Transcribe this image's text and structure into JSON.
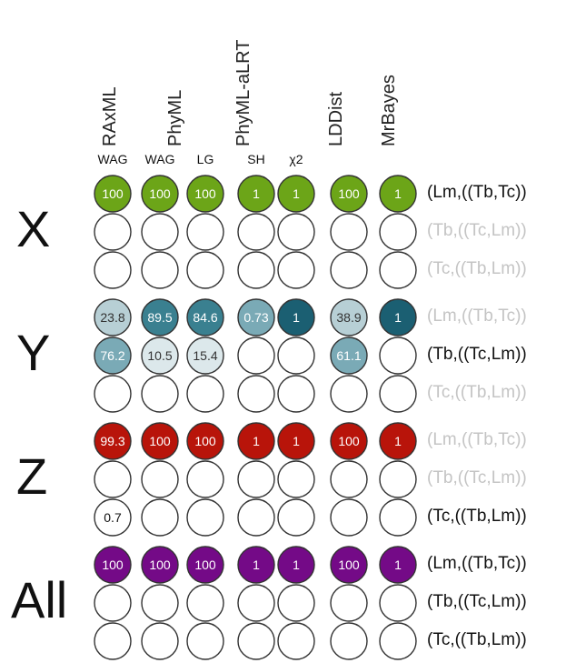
{
  "methods": [
    {
      "label": "RAxML",
      "cols": [
        0
      ]
    },
    {
      "label": "PhyML",
      "cols": [
        1,
        2
      ]
    },
    {
      "label": "PhyML-aLRT",
      "cols": [
        3,
        4
      ]
    },
    {
      "label": "LDDist",
      "cols": [
        5
      ]
    },
    {
      "label": "MrBayes",
      "cols": [
        6
      ]
    }
  ],
  "subheaders": [
    "WAG",
    "WAG",
    "LG",
    "SH",
    "χ2",
    "",
    ""
  ],
  "groups": [
    {
      "label": "X",
      "color": "#6ca518",
      "rows": [
        {
          "topology": "(Lm,((Tb,Tc))",
          "highlight": true,
          "cells": [
            {
              "v": "100",
              "s": "full"
            },
            {
              "v": "100",
              "s": "full"
            },
            {
              "v": "100",
              "s": "full"
            },
            {
              "v": "1",
              "s": "full"
            },
            {
              "v": "1",
              "s": "full"
            },
            {
              "v": "100",
              "s": "full"
            },
            {
              "v": "1",
              "s": "full"
            }
          ]
        },
        {
          "topology": "(Tb,((Tc,Lm))",
          "highlight": false,
          "cells": [
            {
              "v": "",
              "s": "none"
            },
            {
              "v": "",
              "s": "none"
            },
            {
              "v": "",
              "s": "none"
            },
            {
              "v": "",
              "s": "none"
            },
            {
              "v": "",
              "s": "none"
            },
            {
              "v": "",
              "s": "none"
            },
            {
              "v": "",
              "s": "none"
            }
          ]
        },
        {
          "topology": "(Tc,((Tb,Lm))",
          "highlight": false,
          "cells": [
            {
              "v": "",
              "s": "none"
            },
            {
              "v": "",
              "s": "none"
            },
            {
              "v": "",
              "s": "none"
            },
            {
              "v": "",
              "s": "none"
            },
            {
              "v": "",
              "s": "none"
            },
            {
              "v": "",
              "s": "none"
            },
            {
              "v": "",
              "s": "none"
            }
          ]
        }
      ]
    },
    {
      "label": "Y",
      "color": "#1b5f72",
      "rows": [
        {
          "topology": "(Lm,((Tb,Tc))",
          "highlight": false,
          "cells": [
            {
              "v": "23.8",
              "s": "light"
            },
            {
              "v": "89.5",
              "s": "dark"
            },
            {
              "v": "84.6",
              "s": "dark"
            },
            {
              "v": "0.73",
              "s": "mid"
            },
            {
              "v": "1",
              "s": "full"
            },
            {
              "v": "38.9",
              "s": "light"
            },
            {
              "v": "1",
              "s": "full"
            }
          ]
        },
        {
          "topology": "(Tb,((Tc,Lm))",
          "highlight": true,
          "cells": [
            {
              "v": "76.2",
              "s": "mid"
            },
            {
              "v": "10.5",
              "s": "pale"
            },
            {
              "v": "15.4",
              "s": "pale"
            },
            {
              "v": "",
              "s": "none"
            },
            {
              "v": "",
              "s": "none"
            },
            {
              "v": "61.1",
              "s": "mid"
            },
            {
              "v": "",
              "s": "none"
            }
          ]
        },
        {
          "topology": "(Tc,((Tb,Lm))",
          "highlight": false,
          "cells": [
            {
              "v": "",
              "s": "none"
            },
            {
              "v": "",
              "s": "none"
            },
            {
              "v": "",
              "s": "none"
            },
            {
              "v": "",
              "s": "none"
            },
            {
              "v": "",
              "s": "none"
            },
            {
              "v": "",
              "s": "none"
            },
            {
              "v": "",
              "s": "none"
            }
          ]
        }
      ]
    },
    {
      "label": "Z",
      "color": "#b8140a",
      "rows": [
        {
          "topology": "(Lm,((Tb,Tc))",
          "highlight": false,
          "cells": [
            {
              "v": "99.3",
              "s": "full"
            },
            {
              "v": "100",
              "s": "full"
            },
            {
              "v": "100",
              "s": "full"
            },
            {
              "v": "1",
              "s": "full"
            },
            {
              "v": "1",
              "s": "full"
            },
            {
              "v": "100",
              "s": "full"
            },
            {
              "v": "1",
              "s": "full"
            }
          ]
        },
        {
          "topology": "(Tb,((Tc,Lm))",
          "highlight": false,
          "cells": [
            {
              "v": "",
              "s": "none"
            },
            {
              "v": "",
              "s": "none"
            },
            {
              "v": "",
              "s": "none"
            },
            {
              "v": "",
              "s": "none"
            },
            {
              "v": "",
              "s": "none"
            },
            {
              "v": "",
              "s": "none"
            },
            {
              "v": "",
              "s": "none"
            }
          ]
        },
        {
          "topology": "(Tc,((Tb,Lm))",
          "highlight": true,
          "cells": [
            {
              "v": "0.7",
              "s": "none"
            },
            {
              "v": "",
              "s": "none"
            },
            {
              "v": "",
              "s": "none"
            },
            {
              "v": "",
              "s": "none"
            },
            {
              "v": "",
              "s": "none"
            },
            {
              "v": "",
              "s": "none"
            },
            {
              "v": "",
              "s": "none"
            }
          ]
        }
      ]
    },
    {
      "label": "All",
      "color": "#740a87",
      "rows": [
        {
          "topology": "(Lm,((Tb,Tc))",
          "highlight": true,
          "cells": [
            {
              "v": "100",
              "s": "full"
            },
            {
              "v": "100",
              "s": "full"
            },
            {
              "v": "100",
              "s": "full"
            },
            {
              "v": "1",
              "s": "full"
            },
            {
              "v": "1",
              "s": "full"
            },
            {
              "v": "100",
              "s": "full"
            },
            {
              "v": "1",
              "s": "full"
            }
          ]
        },
        {
          "topology": "(Tb,((Tc,Lm))",
          "highlight": true,
          "cells": [
            {
              "v": "",
              "s": "none"
            },
            {
              "v": "",
              "s": "none"
            },
            {
              "v": "",
              "s": "none"
            },
            {
              "v": "",
              "s": "none"
            },
            {
              "v": "",
              "s": "none"
            },
            {
              "v": "",
              "s": "none"
            },
            {
              "v": "",
              "s": "none"
            }
          ]
        },
        {
          "topology": "(Tc,((Tb,Lm))",
          "highlight": true,
          "cells": [
            {
              "v": "",
              "s": "none"
            },
            {
              "v": "",
              "s": "none"
            },
            {
              "v": "",
              "s": "none"
            },
            {
              "v": "",
              "s": "none"
            },
            {
              "v": "",
              "s": "none"
            },
            {
              "v": "",
              "s": "none"
            },
            {
              "v": "",
              "s": "none"
            }
          ]
        }
      ]
    }
  ],
  "colors": {
    "y_full": "#1b5f72",
    "y_dark": "#3a8090",
    "y_mid": "#7aaab6",
    "y_light": "#b7cfd5",
    "y_pale": "#dce8eb",
    "highlight_text": "#111111",
    "dim_text": "#c4c4c4",
    "circle_stroke": "#333333"
  }
}
